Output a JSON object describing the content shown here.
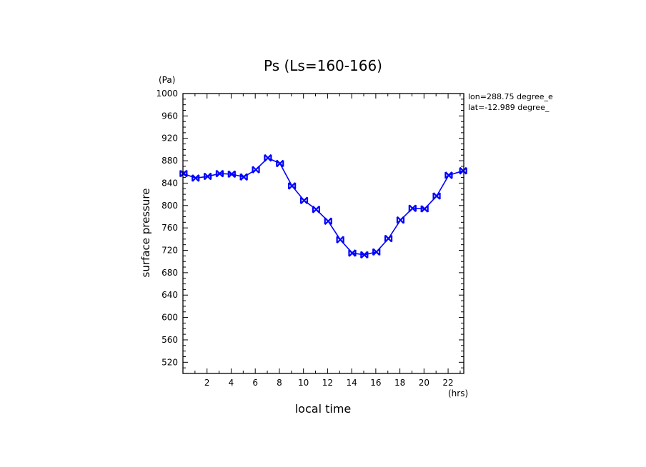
{
  "chart_data": {
    "type": "line",
    "title": "Ps (Ls=160-166)",
    "ylabel": "surface pressure",
    "yunit": "(Pa)",
    "xlabel": "local time",
    "xunit": "(hrs)",
    "annotations": [
      "lon=288.75 degree_e",
      "lat=-12.989 degree_"
    ],
    "xlim": [
      0,
      23.3
    ],
    "ylim": [
      500,
      1000
    ],
    "xticks": [
      2,
      4,
      6,
      8,
      10,
      12,
      14,
      16,
      18,
      20,
      22
    ],
    "yticks": [
      520,
      560,
      600,
      640,
      680,
      720,
      760,
      800,
      840,
      880,
      920,
      960,
      1000
    ],
    "grid": false,
    "series_color": "#0000ff",
    "x": [
      0.05,
      1.05,
      2.05,
      3.05,
      4.05,
      5.05,
      6.05,
      7.05,
      8.05,
      9.05,
      10.05,
      11.05,
      12.05,
      13.05,
      14.05,
      15.05,
      16.05,
      17.05,
      18.05,
      19.05,
      20.05,
      21.05,
      22.05,
      23.25
    ],
    "values": [
      857,
      849,
      852,
      857,
      856,
      851,
      864,
      885,
      875,
      835,
      809,
      793,
      772,
      739,
      715,
      712,
      717,
      741,
      774,
      795,
      794,
      817,
      854,
      862
    ]
  }
}
